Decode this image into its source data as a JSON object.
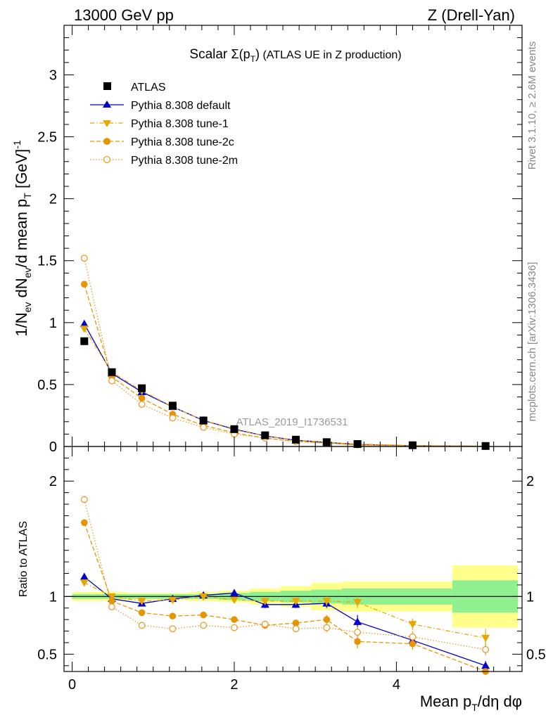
{
  "header": {
    "energy_label": "13000 GeV pp",
    "process_label": "Z (Drell-Yan)"
  },
  "side_labels": {
    "rivet": "Rivet 3.1.10, ≥ 2.6M events",
    "mcplots": "mcplots.cern.ch [arXiv:1306.3436]"
  },
  "colors": {
    "atlas": "#000000",
    "default": "#0000cc",
    "tune1": "#e6a800",
    "tune2c": "#e69500",
    "tune2m": "#e69b2e",
    "band_inner": "#8ff08f",
    "band_outer": "#ffff8c"
  },
  "chart_data": [
    {
      "type": "scatter",
      "panel": "main",
      "title": "Scalar Σ(p_T) (ATLAS UE in Z production)",
      "title_parts": {
        "main": "Scalar ",
        "sigma": "Σ(p",
        "sub": "T",
        "close": ")",
        "rest": " (ATLAS UE in Z production)"
      },
      "ylabel": "1/N_ev dN_ev/d mean p_T [GeV]^-1",
      "ylabel_parts": {
        "a": "1/N",
        "a_sub": "ev",
        "b": " dN",
        "b_sub": "ev",
        "c": "/d mean p",
        "c_sub": "T",
        "d": " [GeV]",
        "d_sup": "-1"
      },
      "xlabel": "Mean p_T/dη dφ",
      "xlabel_parts": {
        "a": "Mean p",
        "a_sub": "T",
        "b": "/dη dφ"
      },
      "watermark": "ATLAS_2019_I1736531",
      "xlim": [
        -0.1,
        5.55
      ],
      "ylim": [
        0,
        3.4
      ],
      "x_ticks": [
        0,
        2,
        4
      ],
      "x_tick_labels": [
        "0",
        "2",
        "4"
      ],
      "y_ticks": [
        0,
        0.5,
        1,
        1.5,
        2,
        2.5,
        3
      ],
      "y_tick_labels": [
        "0",
        "0.5",
        "1",
        "1.5",
        "2",
        "2.5",
        "3"
      ],
      "grid": false,
      "legend_position": "top-left",
      "x": [
        0.15,
        0.49,
        0.86,
        1.24,
        1.62,
        2.0,
        2.38,
        2.76,
        3.14,
        3.52,
        4.2,
        5.1
      ],
      "series": [
        {
          "name": "ATLAS",
          "key": "atlas",
          "marker": "square",
          "line": "none",
          "values": [
            0.85,
            0.6,
            0.47,
            0.33,
            0.21,
            0.14,
            0.09,
            0.055,
            0.035,
            0.02,
            0.01,
            0.004
          ]
        },
        {
          "name": "Pythia 8.308 default",
          "key": "default",
          "marker": "triangle-up",
          "line": "solid",
          "values": [
            0.99,
            0.59,
            0.44,
            0.32,
            0.21,
            0.14,
            0.085,
            0.05,
            0.033,
            0.016,
            0.006,
            0.0017
          ]
        },
        {
          "name": "Pythia 8.308 tune-1",
          "key": "tune1",
          "marker": "triangle-down",
          "line": "dashdot",
          "values": [
            0.95,
            0.6,
            0.45,
            0.32,
            0.21,
            0.135,
            0.085,
            0.052,
            0.033,
            0.019,
            0.008,
            0.0026
          ]
        },
        {
          "name": "Pythia 8.308 tune-2c",
          "key": "tune2c",
          "marker": "circle",
          "line": "dashed",
          "values": [
            1.31,
            0.56,
            0.39,
            0.26,
            0.17,
            0.11,
            0.068,
            0.042,
            0.028,
            0.012,
            0.006,
            0.0014
          ]
        },
        {
          "name": "Pythia 8.308 tune-2m",
          "key": "tune2m",
          "marker": "circle-open",
          "line": "dotted",
          "values": [
            1.52,
            0.53,
            0.34,
            0.23,
            0.155,
            0.1,
            0.068,
            0.039,
            0.026,
            0.014,
            0.0065,
            0.002
          ]
        }
      ]
    },
    {
      "type": "scatter",
      "panel": "ratio",
      "ylabel": "Ratio to ATLAS",
      "xlabel": "Mean p_T/dη dφ",
      "xlim": [
        -0.1,
        5.55
      ],
      "ylim": [
        0.35,
        2.3
      ],
      "x_ticks": [
        0,
        2,
        4
      ],
      "x_tick_labels": [
        "0",
        "2",
        "4"
      ],
      "y_ticks": [
        0.5,
        1,
        2
      ],
      "y_tick_labels": [
        "0.5",
        "1",
        "2"
      ],
      "reference_line": 1,
      "band_edges": [
        0.0,
        0.3,
        0.68,
        1.05,
        1.43,
        1.81,
        2.19,
        2.57,
        2.95,
        3.33,
        3.71,
        4.69,
        5.5
      ],
      "band_inner": [
        0.02,
        0.02,
        0.02,
        0.02,
        0.02,
        0.03,
        0.04,
        0.05,
        0.06,
        0.07,
        0.07,
        0.14
      ],
      "band_outer": [
        0.04,
        0.04,
        0.03,
        0.03,
        0.04,
        0.05,
        0.07,
        0.09,
        0.12,
        0.13,
        0.13,
        0.27
      ],
      "x": [
        0.15,
        0.49,
        0.86,
        1.24,
        1.62,
        2.0,
        2.38,
        2.76,
        3.14,
        3.52,
        4.2,
        5.1
      ],
      "series": [
        {
          "name": "Pythia 8.308 default",
          "key": "default",
          "marker": "triangle-up",
          "line": "solid",
          "values": [
            1.17,
            0.98,
            0.94,
            0.98,
            1.01,
            1.03,
            0.93,
            0.93,
            0.94,
            0.78,
            0.62,
            0.4
          ],
          "errors": [
            0.015,
            0.015,
            0.015,
            0.015,
            0.02,
            0.025,
            0.03,
            0.03,
            0.04,
            0.06,
            0.05,
            0.04
          ]
        },
        {
          "name": "Pythia 8.308 tune-1",
          "key": "tune1",
          "marker": "triangle-down",
          "line": "dashdot",
          "values": [
            1.12,
            1.0,
            0.96,
            0.97,
            1.0,
            0.97,
            0.96,
            0.96,
            0.96,
            0.95,
            0.76,
            0.64
          ],
          "errors": [
            0.015,
            0.015,
            0.015,
            0.015,
            0.02,
            0.025,
            0.03,
            0.03,
            0.04,
            0.05,
            0.05,
            0.08
          ]
        },
        {
          "name": "Pythia 8.308 tune-2c",
          "key": "tune2c",
          "marker": "circle",
          "line": "dashed",
          "values": [
            1.64,
            0.96,
            0.86,
            0.83,
            0.84,
            0.8,
            0.75,
            0.77,
            0.8,
            0.61,
            0.59,
            0.35
          ],
          "errors": [
            0.015,
            0.015,
            0.015,
            0.015,
            0.02,
            0.025,
            0.03,
            0.03,
            0.04,
            0.06,
            0.05,
            0.03
          ]
        },
        {
          "name": "Pythia 8.308 tune-2m",
          "key": "tune2m",
          "marker": "circle-open",
          "line": "dotted",
          "values": [
            1.84,
            0.91,
            0.75,
            0.72,
            0.75,
            0.73,
            0.76,
            0.72,
            0.73,
            0.69,
            0.65,
            0.54
          ],
          "errors": [
            0.015,
            0.015,
            0.015,
            0.015,
            0.02,
            0.025,
            0.03,
            0.03,
            0.04,
            0.05,
            0.05,
            0.05
          ]
        }
      ]
    }
  ]
}
